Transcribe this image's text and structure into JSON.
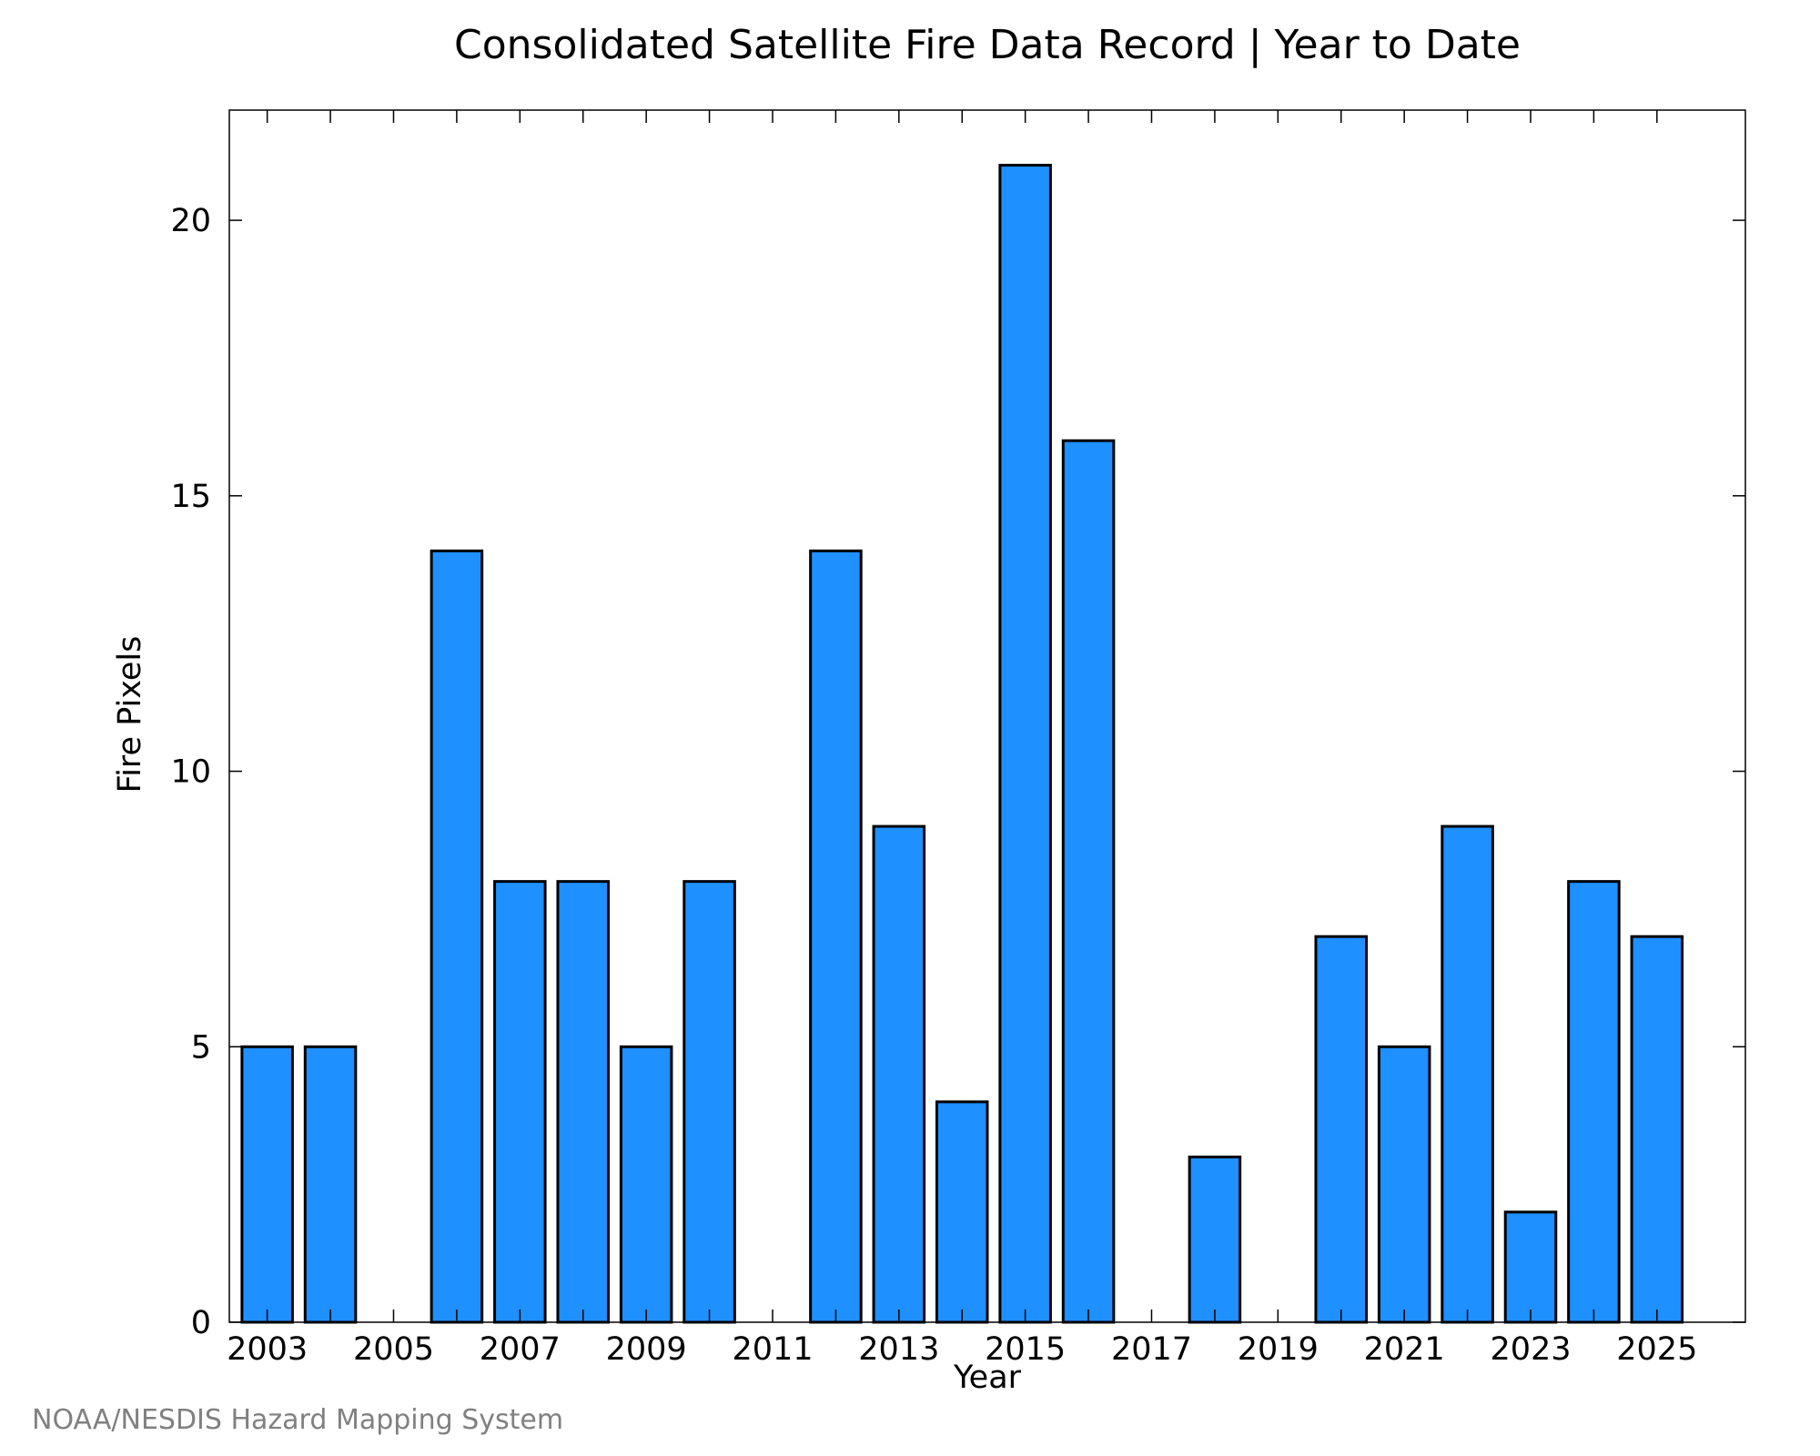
{
  "chart_data": {
    "type": "bar",
    "title": "Consolidated Satellite Fire Data Record | Year to Date",
    "xlabel": "Year",
    "ylabel": "Fire Pixels",
    "categories": [
      2003,
      2004,
      2005,
      2006,
      2007,
      2008,
      2009,
      2010,
      2011,
      2012,
      2013,
      2014,
      2015,
      2016,
      2017,
      2018,
      2019,
      2020,
      2021,
      2022,
      2023,
      2024,
      2025
    ],
    "values": [
      5,
      5,
      0,
      14,
      8,
      8,
      5,
      8,
      0,
      14,
      9,
      4,
      21,
      16,
      0,
      3,
      0,
      7,
      5,
      9,
      2,
      8,
      7
    ],
    "x_tick_labels": [
      "2003",
      "2005",
      "2007",
      "2009",
      "2011",
      "2013",
      "2015",
      "2017",
      "2019",
      "2021",
      "2023",
      "2025"
    ],
    "y_ticks": [
      0,
      5,
      10,
      15,
      20
    ],
    "ylim": [
      0,
      22
    ],
    "xlim": [
      2002.4,
      2026.4
    ],
    "grid": false,
    "bar_color": "#1e90ff",
    "bar_edge_color": "#000000"
  },
  "credit": "NOAA/NESDIS Hazard Mapping System"
}
